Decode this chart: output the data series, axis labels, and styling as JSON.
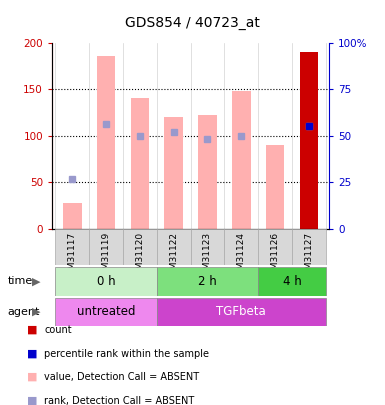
{
  "title": "GDS854 / 40723_at",
  "samples": [
    "GSM31117",
    "GSM31119",
    "GSM31120",
    "GSM31122",
    "GSM31123",
    "GSM31124",
    "GSM31126",
    "GSM31127"
  ],
  "values_absent": [
    28,
    185,
    140,
    120,
    122,
    148,
    90,
    null
  ],
  "rank_absent": [
    27,
    56,
    50,
    52,
    48,
    50,
    null,
    55
  ],
  "count_value": [
    null,
    null,
    null,
    null,
    null,
    null,
    null,
    190
  ],
  "rank_present": [
    null,
    null,
    null,
    null,
    null,
    null,
    null,
    55
  ],
  "is_present": [
    false,
    false,
    false,
    false,
    false,
    false,
    false,
    true
  ],
  "time_groups": [
    {
      "label": "0 h",
      "start": 0,
      "end": 3,
      "color": "#c8f0c8"
    },
    {
      "label": "2 h",
      "start": 3,
      "end": 6,
      "color": "#7de07d"
    },
    {
      "label": "4 h",
      "start": 6,
      "end": 8,
      "color": "#44cc44"
    }
  ],
  "agent_groups": [
    {
      "label": "untreated",
      "start": 0,
      "end": 3,
      "color": "#ee88ee"
    },
    {
      "label": "TGFbeta",
      "start": 3,
      "end": 8,
      "color": "#cc44cc"
    }
  ],
  "ylim_left": [
    0,
    200
  ],
  "ylim_right": [
    0,
    100
  ],
  "yticks_left": [
    0,
    50,
    100,
    150,
    200
  ],
  "ytick_labels_left": [
    "0",
    "50",
    "100",
    "150",
    "200"
  ],
  "yticks_right": [
    0,
    25,
    50,
    75,
    100
  ],
  "ytick_labels_right": [
    "0",
    "25",
    "50",
    "75",
    "100%"
  ],
  "color_bar_absent": "#ffb0b0",
  "color_rank_absent": "#9999cc",
  "color_count": "#cc0000",
  "color_rank_present": "#0000cc",
  "left_axis_color": "#cc0000",
  "right_axis_color": "#0000cc",
  "legend_items": [
    {
      "label": "count",
      "color": "#cc0000"
    },
    {
      "label": "percentile rank within the sample",
      "color": "#0000cc"
    },
    {
      "label": "value, Detection Call = ABSENT",
      "color": "#ffb0b0"
    },
    {
      "label": "rank, Detection Call = ABSENT",
      "color": "#9999cc"
    }
  ]
}
